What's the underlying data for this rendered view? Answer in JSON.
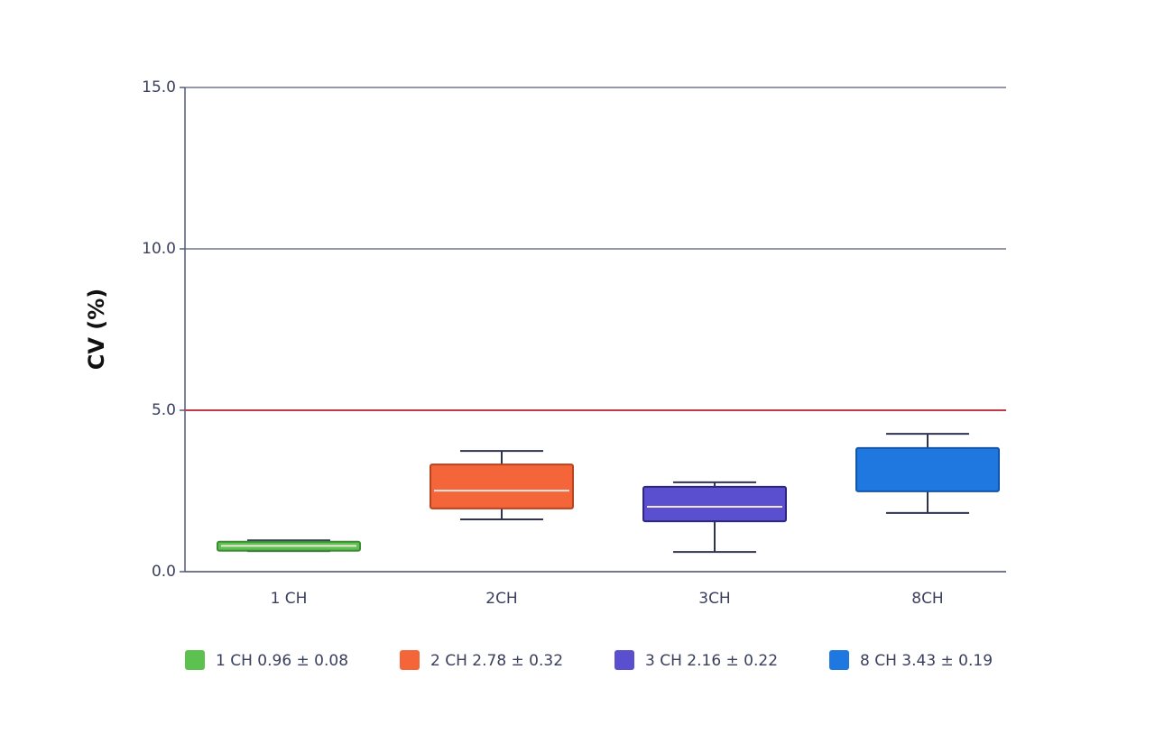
{
  "chart_data": {
    "type": "box",
    "ylabel": "CV (%)",
    "ylim": [
      0,
      15
    ],
    "yticks": [
      {
        "value": 0,
        "label": "0.0"
      },
      {
        "value": 5,
        "label": "5.0"
      },
      {
        "value": 10,
        "label": "10.0"
      },
      {
        "value": 15,
        "label": "15.0"
      }
    ],
    "grid": true,
    "reference_line": {
      "value": 5,
      "color": "#c0394a"
    },
    "categories": [
      "1 CH",
      "2CH",
      "3CH",
      "8CH"
    ],
    "boxes": [
      {
        "name": "1 CH  0.96 ± 0.08",
        "color": "#5cc14f",
        "edge": "#3e8a35",
        "min": 0.64,
        "q1": 0.65,
        "median": 0.8,
        "q3": 0.93,
        "max": 0.97
      },
      {
        "name": "2 CH  2.78 ± 0.32",
        "color": "#f4653a",
        "edge": "#b8431f",
        "min": 1.62,
        "q1": 1.96,
        "median": 2.51,
        "q3": 3.32,
        "max": 3.74
      },
      {
        "name": "3 CH  2.16 ± 0.22",
        "color": "#5a4fcf",
        "edge": "#2e2680",
        "min": 0.61,
        "q1": 1.56,
        "median": 2.01,
        "q3": 2.63,
        "max": 2.77
      },
      {
        "name": "8 CH  3.43 ± 0.19",
        "color": "#1f78e0",
        "edge": "#1555a8",
        "min": 1.82,
        "q1": 2.49,
        "median": null,
        "q3": 3.83,
        "max": 4.27
      }
    ]
  }
}
